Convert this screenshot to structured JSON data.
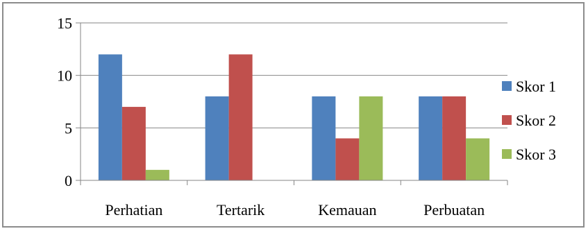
{
  "chart_data": {
    "type": "bar",
    "categories": [
      "Perhatian",
      "Tertarik",
      "Kemauan",
      "Perbuatan"
    ],
    "series": [
      {
        "name": "Skor 1",
        "values": [
          12,
          8,
          8,
          8
        ],
        "color": "#4f81bd"
      },
      {
        "name": "Skor 2",
        "values": [
          7,
          12,
          4,
          8
        ],
        "color": "#c0504d"
      },
      {
        "name": "Skor 3",
        "values": [
          1,
          0,
          8,
          4
        ],
        "color": "#9bbb59"
      }
    ],
    "y_ticks": [
      "0",
      "5",
      "10",
      "15"
    ],
    "ylim": [
      0,
      15
    ],
    "grid": true,
    "legend": "right"
  }
}
